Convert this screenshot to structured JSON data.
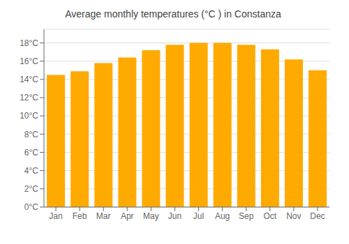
{
  "chart_data": {
    "type": "bar",
    "title": "Average monthly temperatures (°C ) in Constanza",
    "categories": [
      "Jan",
      "Feb",
      "Mar",
      "Apr",
      "May",
      "Jun",
      "Jul",
      "Aug",
      "Sep",
      "Oct",
      "Nov",
      "Dec"
    ],
    "values": [
      14.5,
      14.9,
      15.8,
      16.4,
      17.2,
      17.8,
      18.0,
      18.0,
      17.8,
      17.3,
      16.2,
      15.0
    ],
    "color": "#FFAA00",
    "ylim": [
      0,
      19.5
    ],
    "yticks": [
      {
        "value": 0,
        "label": "0°C"
      },
      {
        "value": 2,
        "label": "2°C"
      },
      {
        "value": 4,
        "label": "4°C"
      },
      {
        "value": 6,
        "label": "6°C"
      },
      {
        "value": 8,
        "label": "8°C"
      },
      {
        "value": 10,
        "label": "10°C"
      },
      {
        "value": 12,
        "label": "12°C"
      },
      {
        "value": 14,
        "label": "14°C"
      },
      {
        "value": 16,
        "label": "16°C"
      },
      {
        "value": 18,
        "label": "18°C"
      }
    ],
    "grid": true
  }
}
